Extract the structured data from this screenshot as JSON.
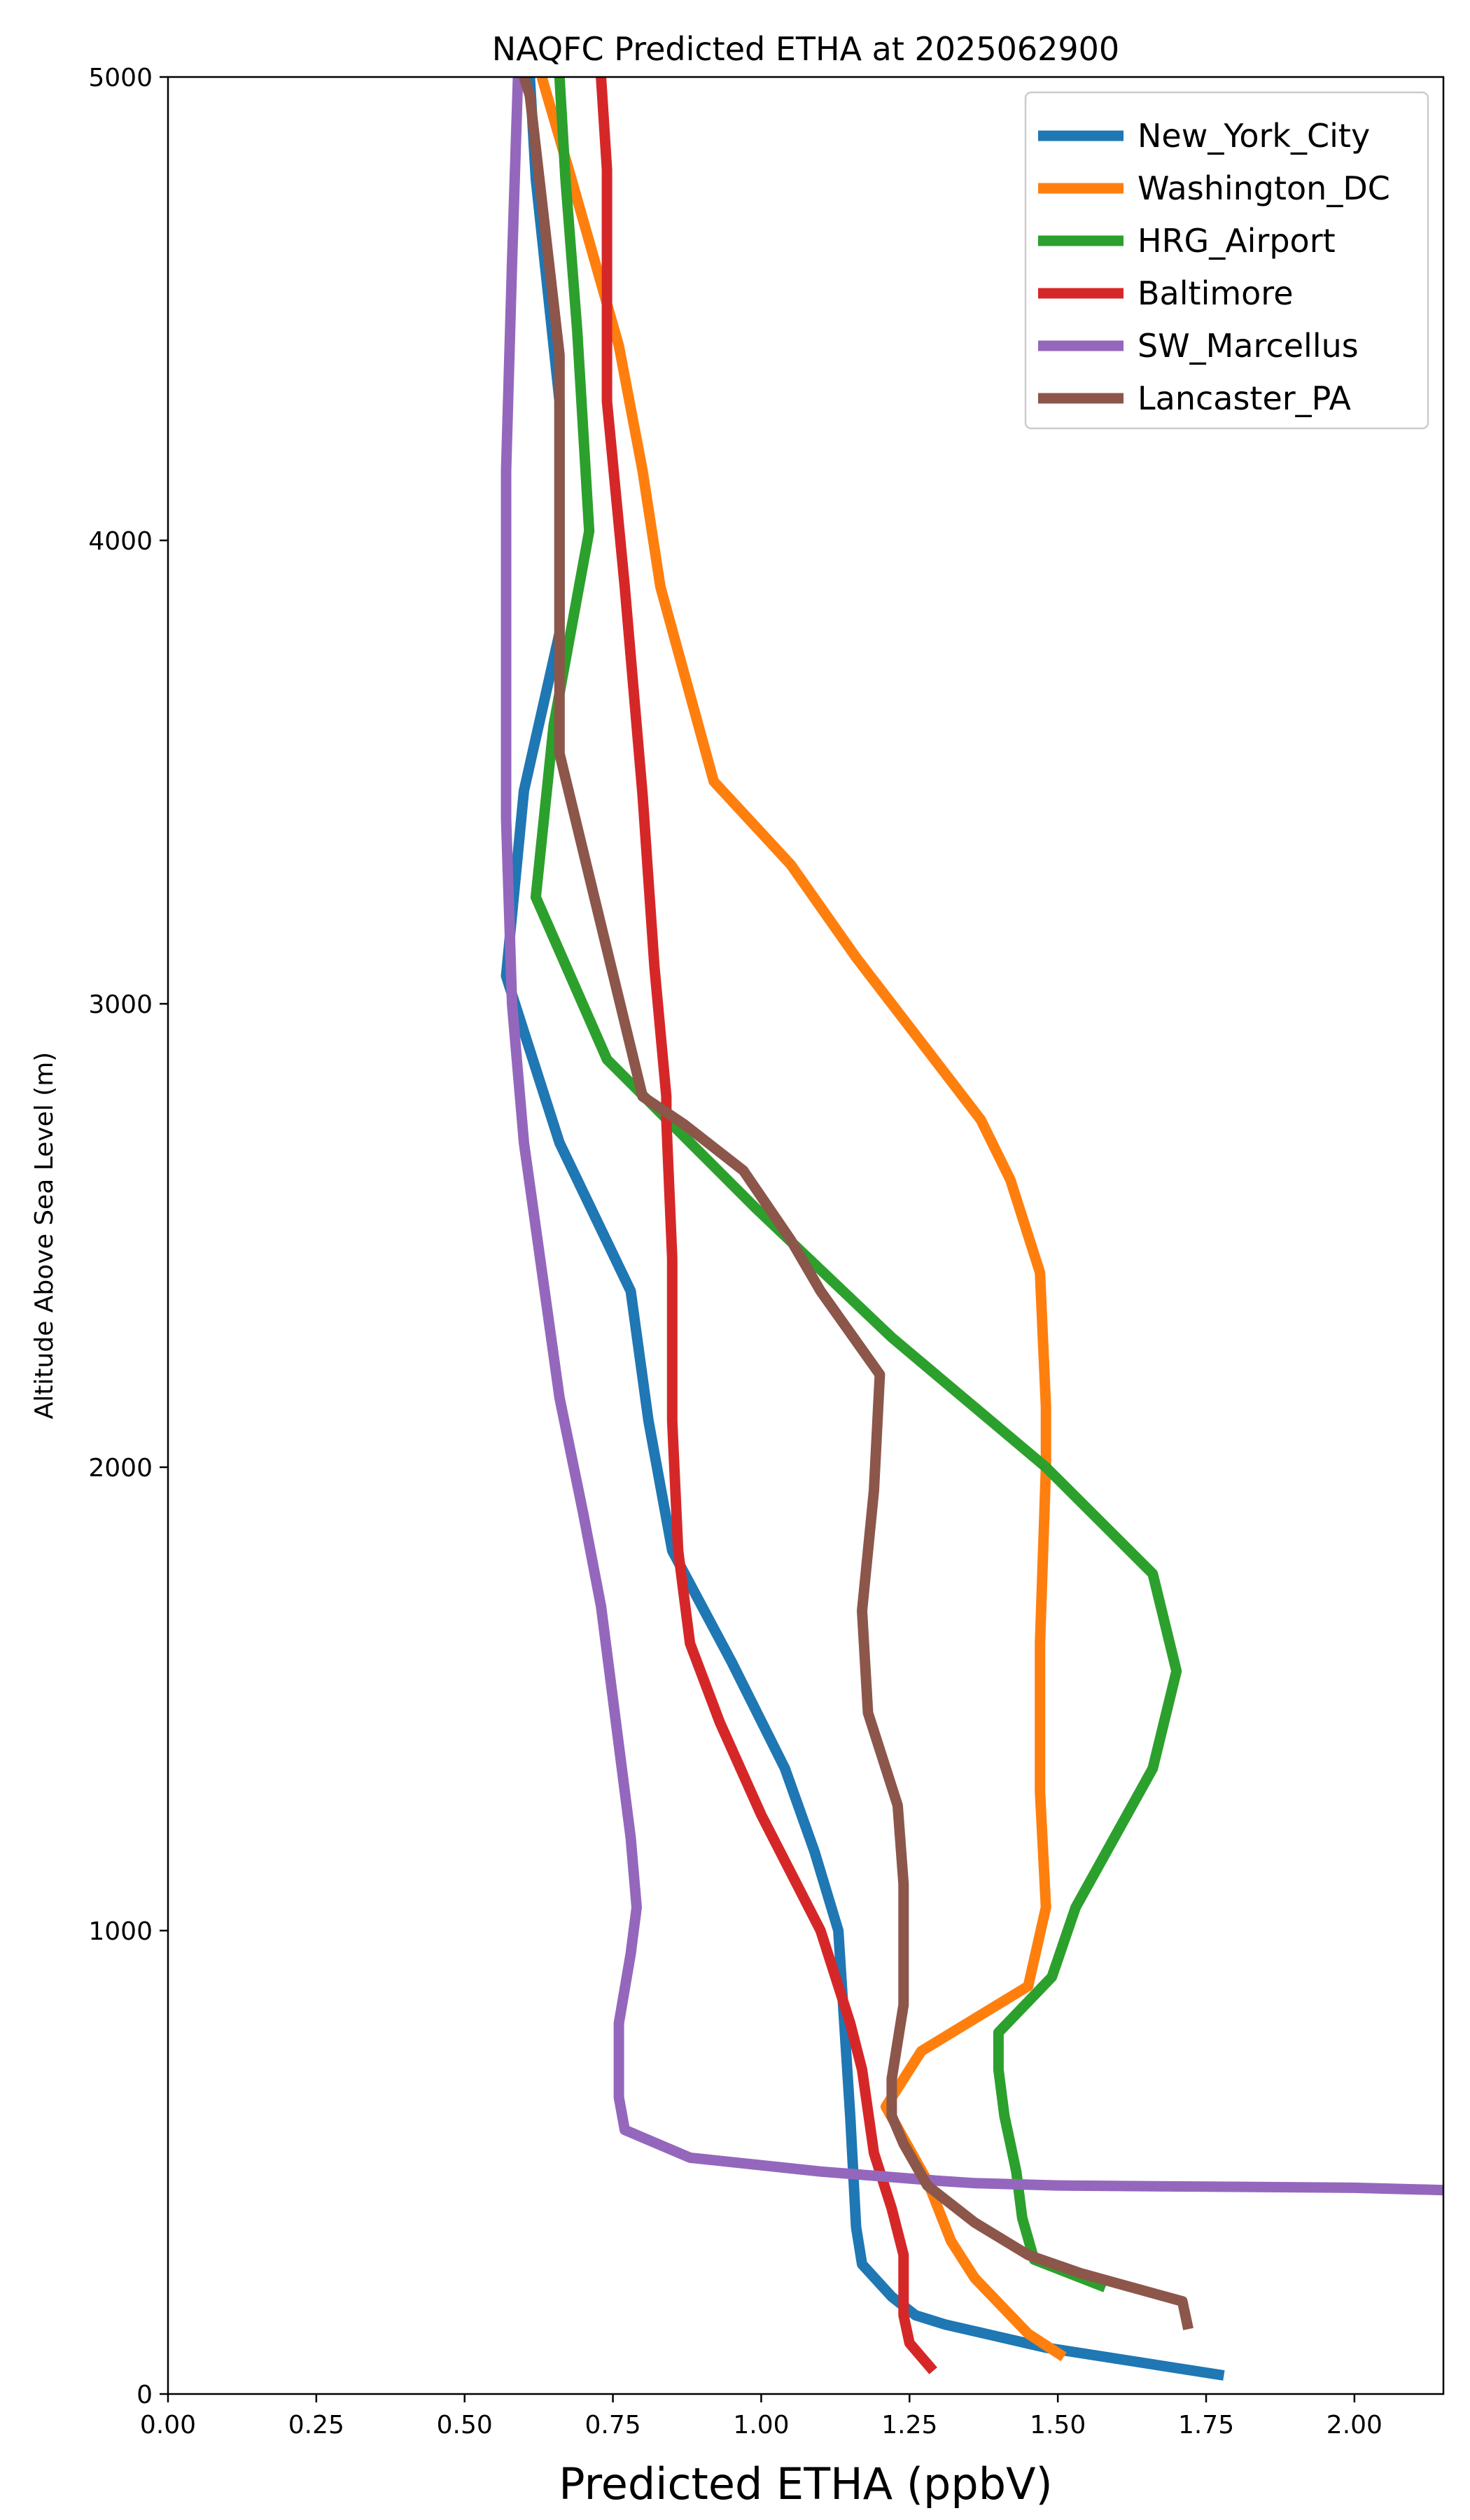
{
  "chart_data": {
    "type": "line",
    "title": "NAQFC Predicted ETHA at 2025062900",
    "xlabel": "Predicted ETHA (ppbV)",
    "ylabel": "Altitude Above Sea Level (m)",
    "xlim": [
      0.0,
      2.15
    ],
    "ylim": [
      0,
      5000
    ],
    "x_ticks": [
      0.0,
      0.25,
      0.5,
      0.75,
      1.0,
      1.25,
      1.5,
      1.75,
      2.0
    ],
    "x_tick_labels": [
      "0.00",
      "0.25",
      "0.50",
      "0.75",
      "1.00",
      "1.25",
      "1.50",
      "1.75",
      "2.00"
    ],
    "y_ticks": [
      0,
      1000,
      2000,
      3000,
      4000,
      5000
    ],
    "y_tick_labels": [
      "0",
      "1000",
      "2000",
      "3000",
      "4000",
      "5000"
    ],
    "grid": false,
    "legend_position": "top-right",
    "series": [
      {
        "name": "New_York_City",
        "color": "#1f77b4",
        "points": [
          [
            1.78,
            40
          ],
          [
            1.48,
            100
          ],
          [
            1.31,
            150
          ],
          [
            1.26,
            170
          ],
          [
            1.22,
            210
          ],
          [
            1.17,
            280
          ],
          [
            1.16,
            360
          ],
          [
            1.15,
            600
          ],
          [
            1.14,
            800
          ],
          [
            1.13,
            1000
          ],
          [
            1.09,
            1170
          ],
          [
            1.04,
            1350
          ],
          [
            0.95,
            1580
          ],
          [
            0.85,
            1820
          ],
          [
            0.81,
            2100
          ],
          [
            0.78,
            2380
          ],
          [
            0.66,
            2700
          ],
          [
            0.57,
            3060
          ],
          [
            0.6,
            3460
          ],
          [
            0.66,
            3800
          ],
          [
            0.66,
            4300
          ],
          [
            0.62,
            4780
          ],
          [
            0.61,
            5000
          ]
        ]
      },
      {
        "name": "Washington_DC",
        "color": "#ff7f0e",
        "points": [
          [
            1.51,
            80
          ],
          [
            1.45,
            130
          ],
          [
            1.36,
            250
          ],
          [
            1.32,
            330
          ],
          [
            1.28,
            460
          ],
          [
            1.21,
            620
          ],
          [
            1.27,
            740
          ],
          [
            1.45,
            880
          ],
          [
            1.48,
            1050
          ],
          [
            1.47,
            1300
          ],
          [
            1.47,
            1620
          ],
          [
            1.48,
            2000
          ],
          [
            1.48,
            2130
          ],
          [
            1.47,
            2420
          ],
          [
            1.42,
            2620
          ],
          [
            1.37,
            2750
          ],
          [
            1.16,
            3100
          ],
          [
            1.05,
            3300
          ],
          [
            0.92,
            3480
          ],
          [
            0.83,
            3900
          ],
          [
            0.8,
            4150
          ],
          [
            0.76,
            4420
          ],
          [
            0.68,
            4780
          ],
          [
            0.63,
            5000
          ]
        ]
      },
      {
        "name": "HRG_Airport",
        "color": "#2ca02c",
        "points": [
          [
            1.58,
            230
          ],
          [
            1.46,
            290
          ],
          [
            1.44,
            380
          ],
          [
            1.43,
            480
          ],
          [
            1.41,
            600
          ],
          [
            1.4,
            700
          ],
          [
            1.4,
            780
          ],
          [
            1.49,
            900
          ],
          [
            1.53,
            1050
          ],
          [
            1.66,
            1350
          ],
          [
            1.7,
            1560
          ],
          [
            1.66,
            1770
          ],
          [
            1.48,
            2000
          ],
          [
            1.22,
            2280
          ],
          [
            0.99,
            2560
          ],
          [
            0.74,
            2880
          ],
          [
            0.62,
            3230
          ],
          [
            0.65,
            3600
          ],
          [
            0.71,
            4020
          ],
          [
            0.69,
            4450
          ],
          [
            0.67,
            4780
          ],
          [
            0.66,
            5000
          ]
        ]
      },
      {
        "name": "Baltimore",
        "color": "#d62728",
        "points": [
          [
            1.29,
            50
          ],
          [
            1.25,
            110
          ],
          [
            1.24,
            170
          ],
          [
            1.24,
            300
          ],
          [
            1.22,
            400
          ],
          [
            1.19,
            520
          ],
          [
            1.17,
            700
          ],
          [
            1.15,
            800
          ],
          [
            1.1,
            1000
          ],
          [
            1.0,
            1250
          ],
          [
            0.93,
            1450
          ],
          [
            0.88,
            1620
          ],
          [
            0.86,
            1820
          ],
          [
            0.85,
            2100
          ],
          [
            0.85,
            2450
          ],
          [
            0.84,
            2750
          ],
          [
            0.84,
            2800
          ],
          [
            0.82,
            3080
          ],
          [
            0.8,
            3450
          ],
          [
            0.77,
            3900
          ],
          [
            0.74,
            4300
          ],
          [
            0.74,
            4800
          ],
          [
            0.73,
            5000
          ]
        ]
      },
      {
        "name": "SW_Marcellus",
        "color": "#9467bd",
        "points": [
          [
            2.15,
            440
          ],
          [
            2.0,
            445
          ],
          [
            1.5,
            450
          ],
          [
            1.36,
            455
          ],
          [
            1.3,
            460
          ],
          [
            1.1,
            480
          ],
          [
            0.88,
            510
          ],
          [
            0.77,
            570
          ],
          [
            0.76,
            640
          ],
          [
            0.76,
            720
          ],
          [
            0.76,
            800
          ],
          [
            0.78,
            950
          ],
          [
            0.79,
            1050
          ],
          [
            0.78,
            1200
          ],
          [
            0.75,
            1500
          ],
          [
            0.73,
            1700
          ],
          [
            0.7,
            1900
          ],
          [
            0.66,
            2150
          ],
          [
            0.6,
            2700
          ],
          [
            0.58,
            3000
          ],
          [
            0.57,
            3400
          ],
          [
            0.57,
            3700
          ],
          [
            0.57,
            4150
          ],
          [
            0.58,
            4600
          ],
          [
            0.59,
            5000
          ]
        ]
      },
      {
        "name": "Lancaster_PA",
        "color": "#8c564b",
        "points": [
          [
            1.72,
            140
          ],
          [
            1.71,
            200
          ],
          [
            1.54,
            260
          ],
          [
            1.45,
            300
          ],
          [
            1.36,
            370
          ],
          [
            1.28,
            450
          ],
          [
            1.24,
            540
          ],
          [
            1.22,
            600
          ],
          [
            1.22,
            680
          ],
          [
            1.24,
            840
          ],
          [
            1.24,
            1100
          ],
          [
            1.23,
            1270
          ],
          [
            1.18,
            1470
          ],
          [
            1.17,
            1690
          ],
          [
            1.19,
            1950
          ],
          [
            1.2,
            2200
          ],
          [
            1.1,
            2380
          ],
          [
            1.05,
            2490
          ],
          [
            0.97,
            2640
          ],
          [
            0.87,
            2740
          ],
          [
            0.8,
            2800
          ],
          [
            0.73,
            3170
          ],
          [
            0.66,
            3540
          ],
          [
            0.66,
            3850
          ],
          [
            0.66,
            4400
          ],
          [
            0.61,
            4960
          ],
          [
            0.6,
            5000
          ]
        ]
      }
    ]
  }
}
